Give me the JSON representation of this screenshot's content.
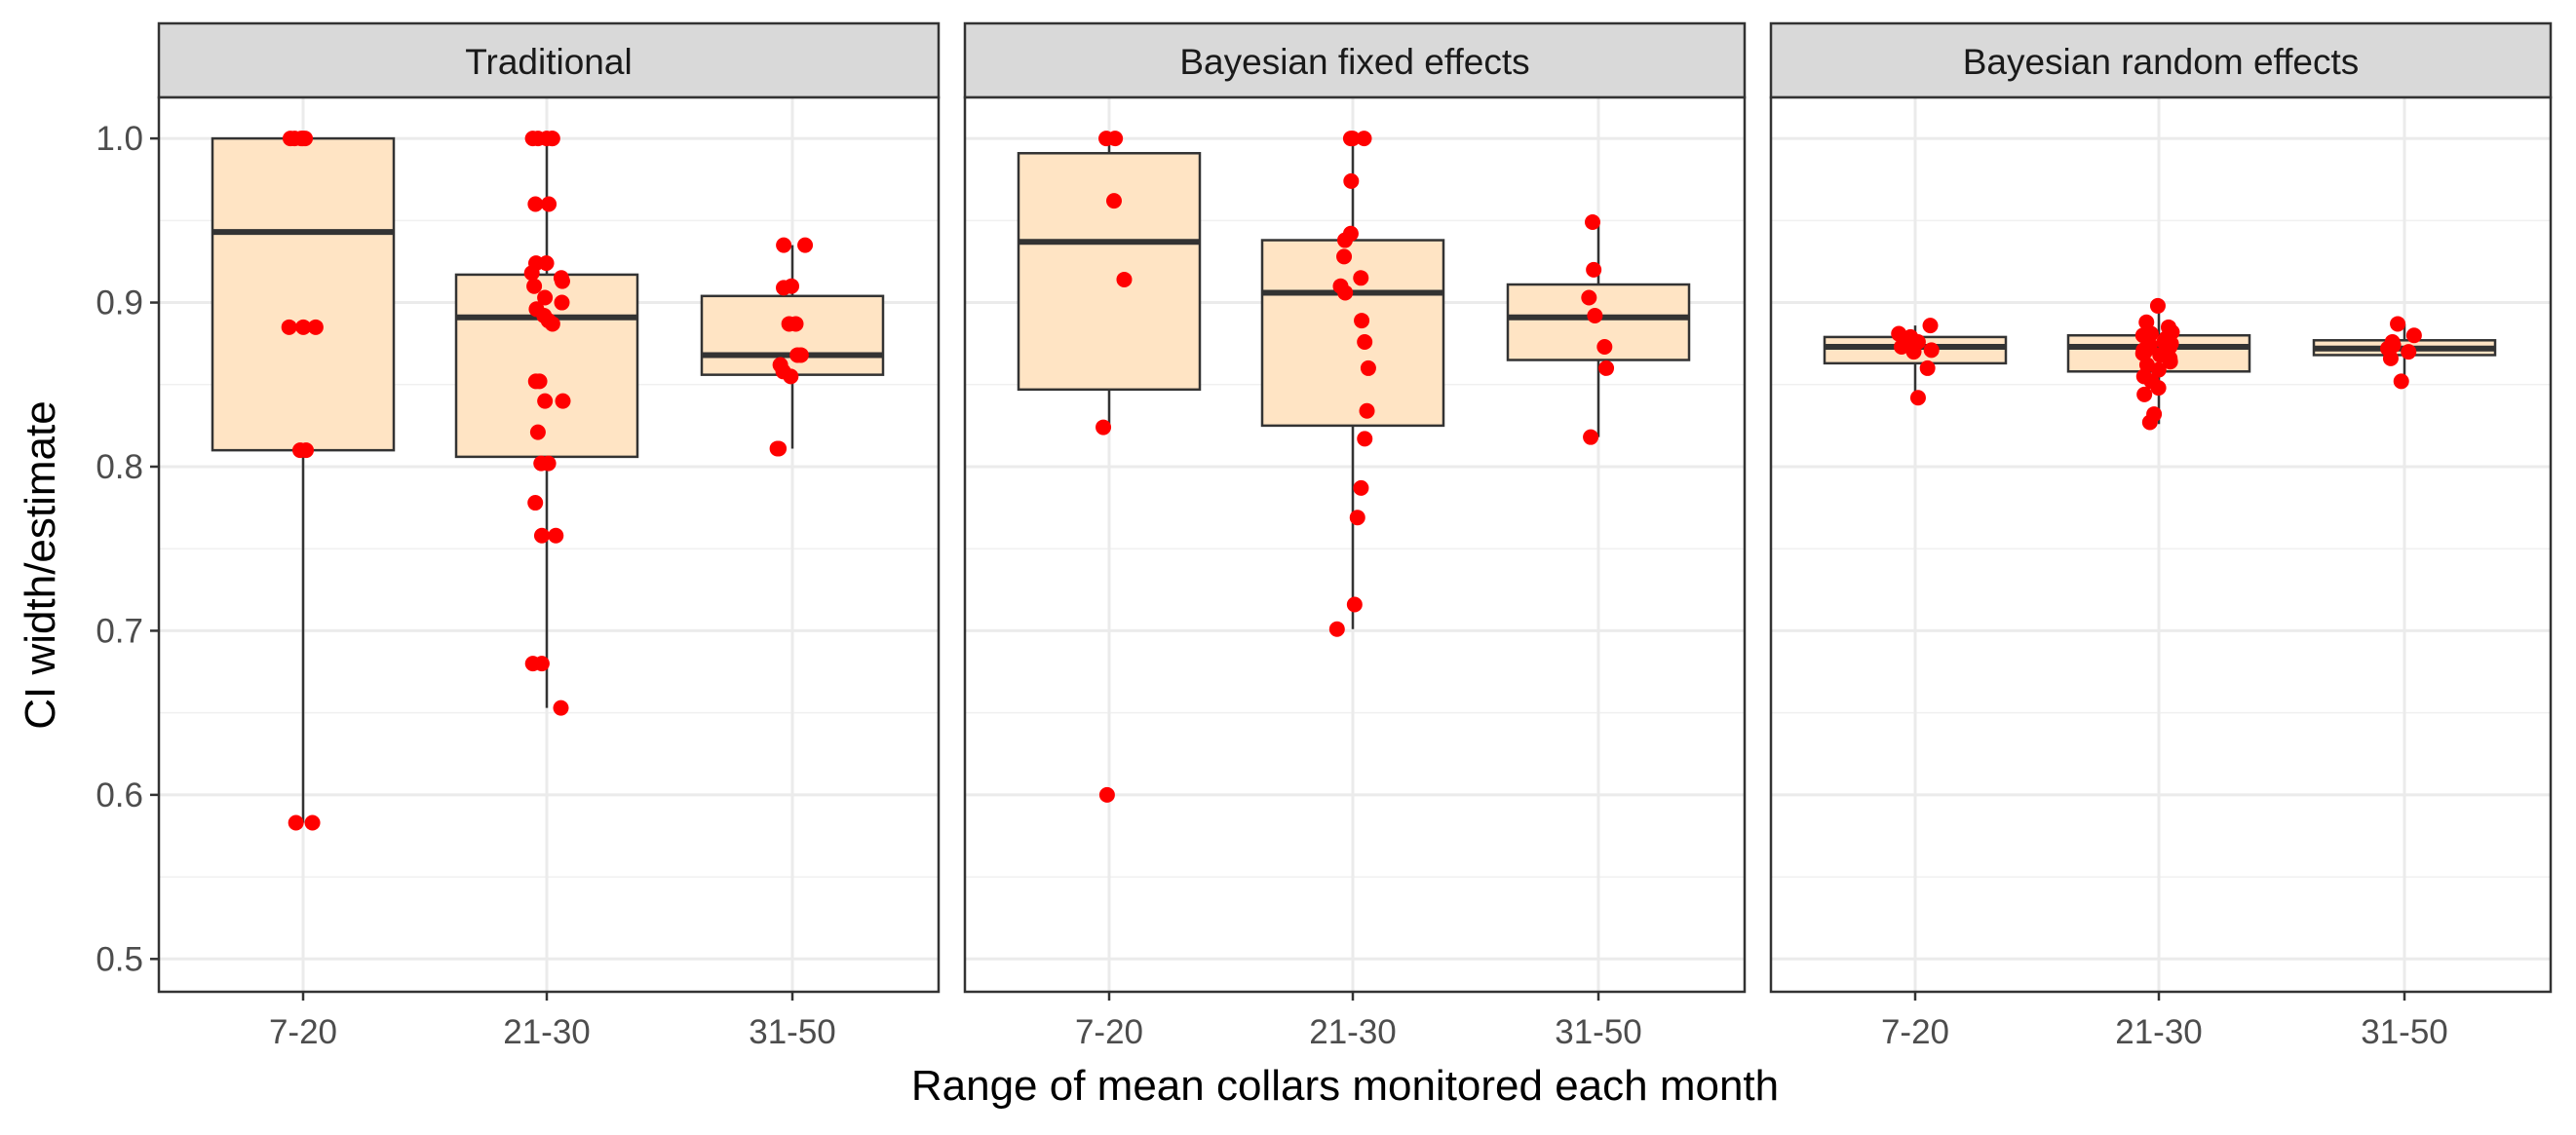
{
  "chart_data": {
    "type": "boxplot",
    "xlabel": "Range of mean collars monitored each month",
    "ylabel": "CI width/estimate",
    "ylim": [
      0.48,
      1.025
    ],
    "yticks": [
      "0.5",
      "0.6",
      "0.7",
      "0.8",
      "0.9",
      "1.0"
    ],
    "categories": [
      "7-20",
      "21-30",
      "31-50"
    ],
    "grid": true,
    "box_fill": "#FFE4C4",
    "point_color": "#FF0000",
    "panels": [
      {
        "title": "Traditional",
        "boxes": [
          {
            "category": "7-20",
            "min": 0.583,
            "q1": 0.81,
            "median": 0.943,
            "q3": 1.0,
            "max": 1.0,
            "points": [
              1.0,
              1.0,
              1.0,
              1.0,
              1.0,
              0.885,
              0.885,
              0.885,
              0.81,
              0.81,
              0.583,
              0.583
            ]
          },
          {
            "category": "21-30",
            "min": 0.653,
            "q1": 0.806,
            "median": 0.891,
            "q3": 0.917,
            "max": 1.0,
            "points": [
              1.0,
              1.0,
              1.0,
              1.0,
              1.0,
              0.96,
              0.96,
              0.924,
              0.924,
              0.918,
              0.915,
              0.913,
              0.91,
              0.903,
              0.9,
              0.896,
              0.892,
              0.889,
              0.887,
              0.852,
              0.852,
              0.84,
              0.84,
              0.821,
              0.802,
              0.802,
              0.778,
              0.758,
              0.758,
              0.68,
              0.68,
              0.653
            ]
          },
          {
            "category": "31-50",
            "min": 0.811,
            "q1": 0.856,
            "median": 0.868,
            "q3": 0.904,
            "max": 0.935,
            "points": [
              0.935,
              0.935,
              0.91,
              0.909,
              0.887,
              0.887,
              0.868,
              0.868,
              0.862,
              0.858,
              0.855,
              0.811,
              0.811
            ]
          }
        ]
      },
      {
        "title": "Bayesian fixed effects",
        "boxes": [
          {
            "category": "7-20",
            "min": 0.823,
            "q1": 0.847,
            "median": 0.937,
            "q3": 0.991,
            "max": 1.0,
            "points": [
              1.0,
              1.0,
              0.962,
              0.914,
              0.824,
              0.6
            ]
          },
          {
            "category": "21-30",
            "min": 0.701,
            "q1": 0.825,
            "median": 0.906,
            "q3": 0.938,
            "max": 1.0,
            "points": [
              1.0,
              1.0,
              1.0,
              0.974,
              0.942,
              0.938,
              0.928,
              0.915,
              0.91,
              0.906,
              0.889,
              0.876,
              0.86,
              0.834,
              0.817,
              0.787,
              0.769,
              0.716,
              0.701
            ]
          },
          {
            "category": "31-50",
            "min": 0.818,
            "q1": 0.865,
            "median": 0.891,
            "q3": 0.911,
            "max": 0.949,
            "points": [
              0.949,
              0.92,
              0.903,
              0.892,
              0.873,
              0.86,
              0.818
            ]
          }
        ]
      },
      {
        "title": "Bayesian random effects",
        "boxes": [
          {
            "category": "7-20",
            "min": 0.842,
            "q1": 0.863,
            "median": 0.873,
            "q3": 0.879,
            "max": 0.886,
            "points": [
              0.886,
              0.881,
              0.879,
              0.876,
              0.874,
              0.873,
              0.871,
              0.87,
              0.86,
              0.842
            ]
          },
          {
            "category": "21-30",
            "min": 0.826,
            "q1": 0.858,
            "median": 0.873,
            "q3": 0.88,
            "max": 0.898,
            "points": [
              0.898,
              0.888,
              0.885,
              0.882,
              0.881,
              0.88,
              0.879,
              0.878,
              0.877,
              0.876,
              0.875,
              0.874,
              0.873,
              0.872,
              0.871,
              0.87,
              0.869,
              0.868,
              0.866,
              0.864,
              0.862,
              0.859,
              0.855,
              0.852,
              0.848,
              0.844,
              0.832,
              0.827
            ]
          },
          {
            "category": "31-50",
            "min": 0.85,
            "q1": 0.868,
            "median": 0.872,
            "q3": 0.877,
            "max": 0.887,
            "points": [
              0.887,
              0.88,
              0.876,
              0.874,
              0.872,
              0.87,
              0.866,
              0.852
            ]
          }
        ]
      }
    ]
  }
}
